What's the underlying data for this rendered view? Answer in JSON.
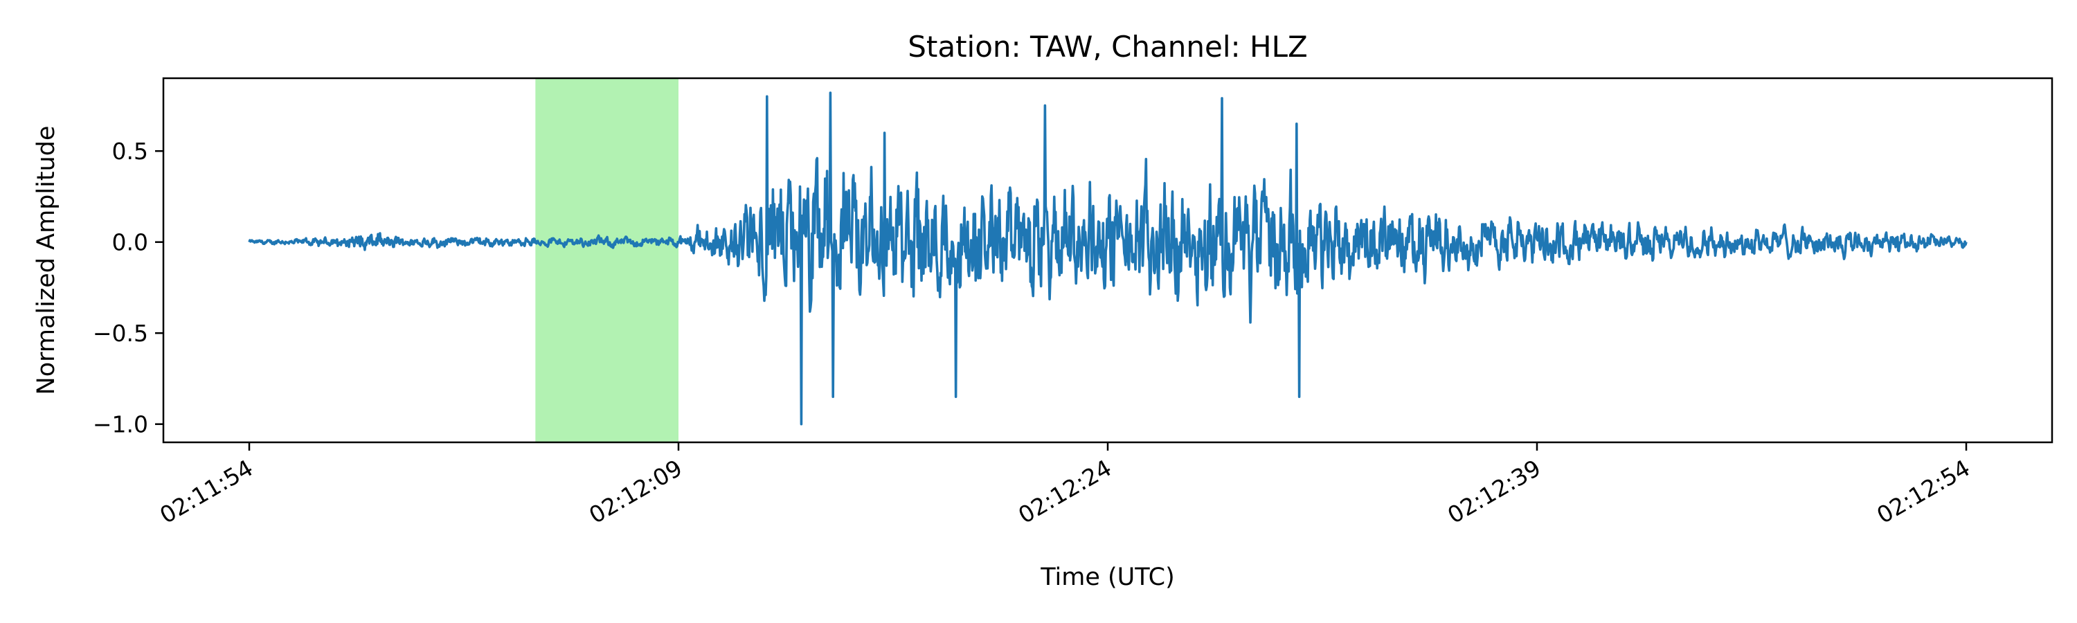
{
  "chart_data": {
    "type": "line",
    "title": "Station: TAW, Channel: HLZ",
    "xlabel": "Time (UTC)",
    "ylabel": "Normalized Amplitude",
    "x_start_time": "02:11:54",
    "x_end_time": "02:12:54",
    "x_tick_labels": [
      "02:11:54",
      "02:12:09",
      "02:12:24",
      "02:12:39",
      "02:12:54"
    ],
    "xlim": [
      "02:11:51",
      "02:12:57"
    ],
    "y_ticks": [
      0.5,
      0.0,
      -0.5,
      -1.0
    ],
    "y_tick_labels": [
      "0.5",
      "0.0",
      "−0.5",
      "−1.0"
    ],
    "ylim": [
      -1.1,
      0.9
    ],
    "grid": false,
    "highlight_span": {
      "start": "02:12:04",
      "end": "02:12:09",
      "color": "#b2f2b2"
    },
    "series": [
      {
        "color": "#1f77b4",
        "envelope": [
          {
            "t": "02:11:54",
            "amp": 0.02
          },
          {
            "t": "02:11:57",
            "amp": 0.05
          },
          {
            "t": "02:11:58",
            "amp": 0.1
          },
          {
            "t": "02:12:00",
            "amp": 0.06
          },
          {
            "t": "02:12:04",
            "amp": 0.05
          },
          {
            "t": "02:12:09",
            "amp": 0.06
          },
          {
            "t": "02:12:10",
            "amp": 0.2
          },
          {
            "t": "02:12:11",
            "amp": 0.35
          },
          {
            "t": "02:12:12",
            "amp": 0.6
          },
          {
            "t": "02:12:13",
            "amp": 0.85
          },
          {
            "t": "02:12:14",
            "amp": 0.9
          },
          {
            "t": "02:12:16",
            "amp": 0.75
          },
          {
            "t": "02:12:20",
            "amp": 0.65
          },
          {
            "t": "02:12:24",
            "amp": 0.6
          },
          {
            "t": "02:12:28",
            "amp": 0.7
          },
          {
            "t": "02:12:30",
            "amp": 0.65
          },
          {
            "t": "02:12:33",
            "amp": 0.4
          },
          {
            "t": "02:12:37",
            "amp": 0.3
          },
          {
            "t": "02:12:41",
            "amp": 0.22
          },
          {
            "t": "02:12:46",
            "amp": 0.16
          },
          {
            "t": "02:12:51",
            "amp": 0.14
          },
          {
            "t": "02:12:54",
            "amp": 0.05
          }
        ],
        "extremes": [
          {
            "t": "02:12:12.1",
            "value": 0.8
          },
          {
            "t": "02:12:13.3",
            "value": -1.0
          },
          {
            "t": "02:12:14.3",
            "value": 0.82
          },
          {
            "t": "02:12:14.4",
            "value": -0.85
          },
          {
            "t": "02:12:16.2",
            "value": 0.6
          },
          {
            "t": "02:12:18.7",
            "value": -0.85
          },
          {
            "t": "02:12:21.8",
            "value": 0.75
          },
          {
            "t": "02:12:28.0",
            "value": 0.79
          },
          {
            "t": "02:12:30.6",
            "value": 0.65
          },
          {
            "t": "02:12:30.7",
            "value": -0.85
          }
        ]
      }
    ]
  }
}
